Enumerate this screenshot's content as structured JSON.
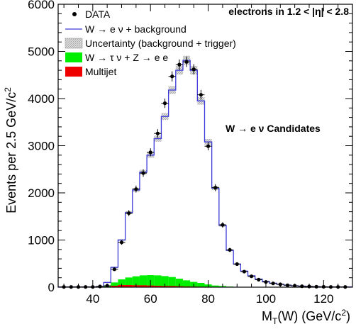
{
  "chart_data": {
    "type": "histogram",
    "xlabel_parts": {
      "m": "M",
      "t": "T",
      "rest": "(W) (GeV/c",
      "sup": "2",
      "close": ")"
    },
    "ylabel_parts": {
      "main": "Events per 2.5 GeV/c",
      "sup": "2"
    },
    "xlim": [
      28,
      130
    ],
    "ylim": [
      0,
      6000
    ],
    "x_ticks": [
      40,
      60,
      80,
      100,
      120
    ],
    "y_ticks": [
      0,
      1000,
      2000,
      3000,
      4000,
      5000,
      6000
    ],
    "bin_width": 2.5,
    "annotations": {
      "region": "electrons in 1.2 < |η| < 2.8",
      "candidates": "W → e ν Candidates"
    },
    "legend": [
      {
        "label": "DATA",
        "style": "marker",
        "color": "#000000"
      },
      {
        "label": "W → e ν  +  background",
        "style": "line",
        "color": "#3b3bd9"
      },
      {
        "label": "Uncertainty (background + trigger)",
        "style": "hatch",
        "color": "#aaaaaa"
      },
      {
        "label": "W → τ ν  +  Z → e e",
        "style": "fill",
        "color": "#00ee00"
      },
      {
        "label": "Multijet",
        "style": "fill",
        "color": "#ee0000"
      }
    ],
    "series": [
      {
        "name": "DATA",
        "x": [
          30,
          32.5,
          35,
          37.5,
          40,
          42.5,
          45,
          47.5,
          50,
          52.5,
          55,
          57.5,
          60,
          62.5,
          65,
          67.5,
          70,
          72.5,
          75,
          77.5,
          80,
          82.5,
          85,
          87.5,
          90,
          92.5,
          95,
          97.5,
          100,
          102.5,
          105,
          107.5,
          110,
          112.5,
          115,
          117.5,
          120,
          122.5,
          125,
          127.5
        ],
        "y": [
          5,
          5,
          5,
          5,
          5,
          15,
          30,
          380,
          950,
          1570,
          2080,
          2420,
          2860,
          3260,
          3900,
          4470,
          4720,
          4780,
          4620,
          4080,
          2990,
          2110,
          1320,
          790,
          490,
          330,
          230,
          160,
          110,
          80,
          60,
          40,
          30,
          20,
          15,
          10,
          8,
          5,
          5,
          5
        ]
      },
      {
        "name": "W → e ν  +  background",
        "x": [
          27.5,
          30,
          32.5,
          35,
          37.5,
          40,
          42.5,
          45,
          47.5,
          50,
          52.5,
          55,
          57.5,
          60,
          62.5,
          65,
          67.5,
          70,
          72.5,
          75,
          77.5,
          80,
          82.5,
          85,
          87.5,
          90,
          92.5,
          95,
          97.5,
          100,
          102.5,
          105,
          107.5,
          110,
          112.5,
          115,
          117.5,
          120,
          122.5,
          125,
          127.5,
          130
        ],
        "y": [
          5,
          5,
          5,
          5,
          5,
          5,
          15,
          100,
          420,
          1000,
          1580,
          2060,
          2440,
          2800,
          3150,
          3620,
          4180,
          4600,
          4810,
          4600,
          3950,
          3080,
          2100,
          1310,
          780,
          490,
          340,
          240,
          170,
          120,
          85,
          60,
          45,
          30,
          22,
          15,
          10,
          8,
          5,
          5,
          5,
          5
        ]
      },
      {
        "name": "W → τ ν  +  Z → e e",
        "x": [
          45,
          47.5,
          50,
          52.5,
          55,
          57.5,
          60,
          62.5,
          65,
          67.5,
          70,
          72.5,
          75,
          77.5,
          80,
          82.5,
          85,
          87.5,
          90
        ],
        "y": [
          20,
          70,
          120,
          160,
          190,
          210,
          220,
          220,
          210,
          190,
          160,
          130,
          100,
          80,
          50,
          30,
          20,
          10,
          5
        ]
      },
      {
        "name": "Multijet",
        "x": [
          45,
          47.5,
          50,
          52.5,
          55,
          57.5,
          60,
          62.5,
          65,
          67.5,
          70,
          72.5,
          75,
          77.5,
          80,
          82.5,
          85,
          87.5,
          90
        ],
        "y": [
          10,
          30,
          45,
          45,
          40,
          40,
          35,
          30,
          25,
          25,
          20,
          15,
          12,
          10,
          8,
          5,
          5,
          3,
          2
        ]
      }
    ]
  }
}
